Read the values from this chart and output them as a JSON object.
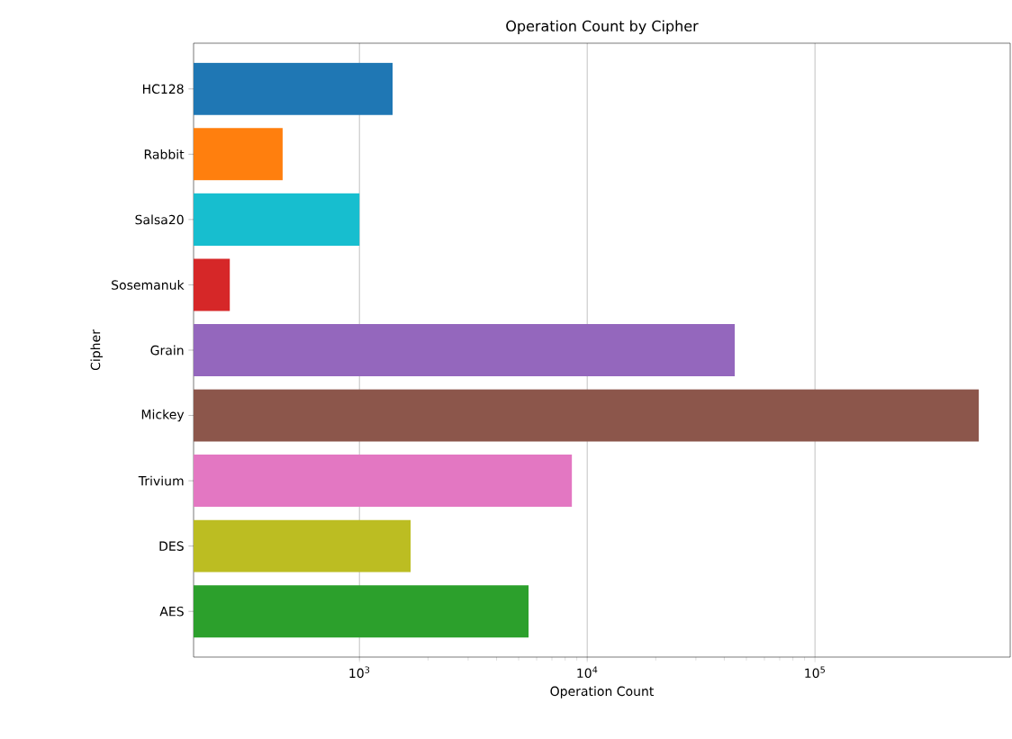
{
  "chart_data": {
    "type": "bar",
    "orientation": "horizontal",
    "title": "Operation Count by Cipher",
    "xlabel": "Operation Count",
    "ylabel": "Cipher",
    "categories": [
      "HC128",
      "Rabbit",
      "Salsa20",
      "Sosemanuk",
      "Grain",
      "Mickey",
      "Trivium",
      "DES",
      "AES"
    ],
    "values": [
      1400,
      460,
      1000,
      270,
      44500,
      524000,
      8570,
      1680,
      5530
    ],
    "colors": [
      "#1f77b4",
      "#ff7f0e",
      "#17becf",
      "#d62728",
      "#9467bd",
      "#8c564b",
      "#e377c2",
      "#bcbd22",
      "#2ca02c"
    ],
    "log": "x",
    "xlim": [
      187,
      720000
    ],
    "xticks": [
      {
        "value": 1000,
        "label": "10$^{3}$"
      },
      {
        "value": 10000,
        "label": "10$^{4}$"
      },
      {
        "value": 100000,
        "label": "10$^{5}$"
      }
    ],
    "grid": "x"
  }
}
